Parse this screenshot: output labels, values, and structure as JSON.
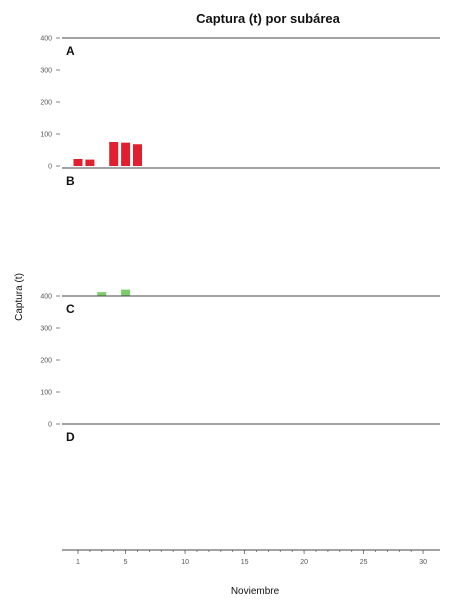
{
  "chart_data": {
    "type": "bar",
    "title": "Captura (t) por subárea",
    "xlabel": "Noviembre",
    "ylabel": "Captura (t)",
    "x_ticks": [
      "1",
      "5",
      "10",
      "15",
      "20",
      "25",
      "30"
    ],
    "y_ticks": [
      "0",
      "100",
      "200",
      "300",
      "400"
    ],
    "xlim": [
      0,
      31
    ],
    "ylim": [
      0,
      400
    ],
    "panels": [
      {
        "label": "A",
        "color": "#e0202e",
        "y_ticks_shown": true,
        "x": [
          1,
          2,
          4,
          5,
          6
        ],
        "values": [
          22,
          20,
          75,
          73,
          68
        ]
      },
      {
        "label": "B",
        "color": "#7ccd6a",
        "y_ticks_shown": false,
        "x": [
          3,
          5
        ],
        "values": [
          12,
          20
        ]
      },
      {
        "label": "C",
        "color": "#999999",
        "y_ticks_shown": true,
        "x": [],
        "values": []
      },
      {
        "label": "D",
        "color": "#999999",
        "y_ticks_shown": false,
        "x": [],
        "values": []
      }
    ]
  }
}
